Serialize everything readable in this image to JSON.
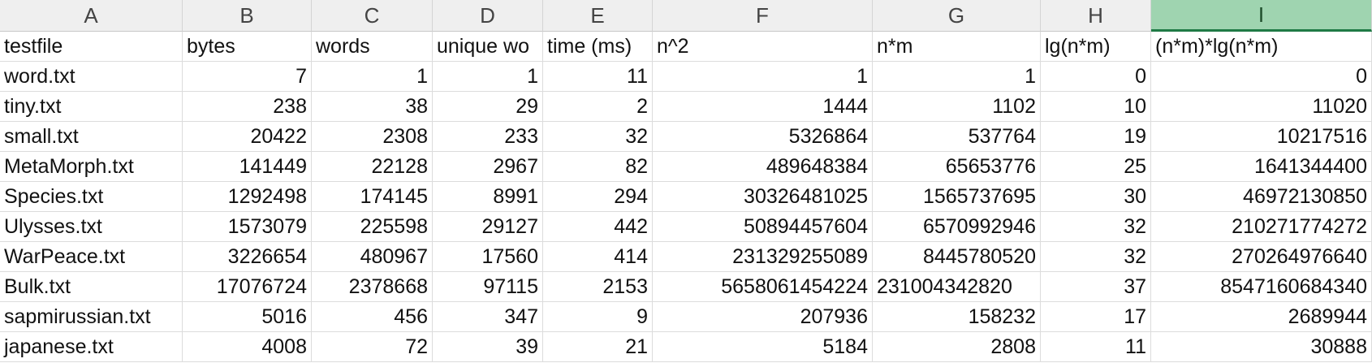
{
  "columns": [
    "A",
    "B",
    "C",
    "D",
    "E",
    "F",
    "G",
    "H",
    "I"
  ],
  "selected_column": "I",
  "rows": [
    [
      "testfile",
      "bytes",
      "words",
      "unique wo",
      "time (ms)",
      "n^2",
      "n*m",
      "lg(n*m)",
      "(n*m)*lg(n*m)"
    ],
    [
      "word.txt",
      "7",
      "1",
      "1",
      "11",
      "1",
      "1",
      "0",
      "0"
    ],
    [
      "tiny.txt",
      "238",
      "38",
      "29",
      "2",
      "1444",
      "1102",
      "10",
      "11020"
    ],
    [
      "small.txt",
      "20422",
      "2308",
      "233",
      "32",
      "5326864",
      "537764",
      "19",
      "10217516"
    ],
    [
      "MetaMorph.txt",
      "141449",
      "22128",
      "2967",
      "82",
      "489648384",
      "65653776",
      "25",
      "1641344400"
    ],
    [
      "Species.txt",
      "1292498",
      "174145",
      "8991",
      "294",
      "30326481025",
      "1565737695",
      "30",
      "46972130850"
    ],
    [
      "Ulysses.txt",
      "1573079",
      "225598",
      "29127",
      "442",
      "50894457604",
      "6570992946",
      "32",
      "210271774272"
    ],
    [
      "WarPeace.txt",
      "3226654",
      "480967",
      "17560",
      "414",
      "231329255089",
      "8445780520",
      "32",
      "270264976640"
    ],
    [
      "Bulk.txt",
      "17076724",
      "2378668",
      "97115",
      "2153",
      "5658061454224",
      "231004342820",
      "37",
      "8547160684340"
    ],
    [
      "sapmirussian.txt",
      "5016",
      "456",
      "347",
      "9",
      "207936",
      "158232",
      "17",
      "2689944"
    ],
    [
      "japanese.txt",
      "4008",
      "72",
      "39",
      "21",
      "5184",
      "2808",
      "11",
      "30888"
    ]
  ]
}
